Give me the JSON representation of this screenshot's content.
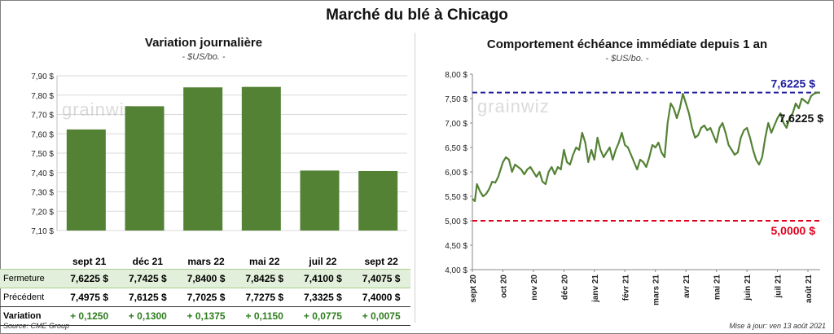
{
  "title": "Marché du blé à Chicago",
  "left_panel": {
    "title": "Variation journalière",
    "subtitle": "- $US/bo. -"
  },
  "right_panel": {
    "title": "Comportement échéance immédiate depuis 1 an",
    "subtitle": "- $US/bo. -"
  },
  "watermark": "grainwiz",
  "table": {
    "row_labels": {
      "close": "Fermeture",
      "prev": "Précédent",
      "var": "Variation"
    },
    "close": [
      "7,6225 $",
      "7,7425 $",
      "7,8400 $",
      "7,8425 $",
      "7,4100 $",
      "7,4075 $"
    ],
    "prev": [
      "7,4975 $",
      "7,6125 $",
      "7,7025 $",
      "7,7275 $",
      "7,3325 $",
      "7,4000 $"
    ],
    "var": [
      "+ 0,1250",
      "+ 0,1300",
      "+ 0,1375",
      "+ 0,1150",
      "+ 0,0775",
      "+ 0,0075"
    ]
  },
  "footer": {
    "source": "Source: CME Group",
    "update": "Mise à jour: ven 13 août 2021"
  },
  "colors": {
    "bar": "#548235",
    "line": "#548235",
    "upper_ref": "#1f1fa0",
    "lower_ref": "#e0001b",
    "table_highlight": "#e2efda"
  },
  "chart_data": [
    {
      "type": "bar",
      "categories": [
        "sept 21",
        "déc 21",
        "mars 22",
        "mai 22",
        "juil 22",
        "sept 22"
      ],
      "values": [
        7.6225,
        7.7425,
        7.84,
        7.8425,
        7.41,
        7.4075
      ],
      "ylim": [
        7.1,
        7.9
      ],
      "yticks": [
        7.1,
        7.2,
        7.3,
        7.4,
        7.5,
        7.6,
        7.7,
        7.8,
        7.9
      ],
      "ytick_labels": [
        "7,10 $",
        "7,20 $",
        "7,30 $",
        "7,40 $",
        "7,50 $",
        "7,60 $",
        "7,70 $",
        "7,80 $",
        "7,90 $"
      ],
      "grid": true
    },
    {
      "type": "line",
      "x_labels": [
        "sept 20",
        "oct 20",
        "nov 20",
        "déc 20",
        "janv 21",
        "févr 21",
        "mars 21",
        "avr 21",
        "mai 21",
        "juin 21",
        "juil 21",
        "août 21"
      ],
      "ylim": [
        4.0,
        8.0
      ],
      "yticks": [
        4.0,
        4.5,
        5.0,
        5.5,
        6.0,
        6.5,
        7.0,
        7.5,
        8.0
      ],
      "ytick_labels": [
        "4,00 $",
        "4,50 $",
        "5,00 $",
        "5,50 $",
        "6,00 $",
        "6,50 $",
        "7,00 $",
        "7,50 $",
        "8,00 $"
      ],
      "series": [
        {
          "x": [
            0,
            0.08,
            0.15,
            0.25,
            0.35,
            0.45,
            0.55,
            0.65,
            0.75,
            0.85,
            1.0,
            1.1,
            1.2,
            1.3,
            1.4,
            1.5,
            1.6,
            1.7,
            1.8,
            1.9,
            2.0,
            2.1,
            2.2,
            2.3,
            2.4,
            2.5,
            2.6,
            2.7,
            2.8,
            2.9,
            3.0,
            3.1,
            3.2,
            3.3,
            3.4,
            3.5,
            3.6,
            3.7,
            3.8,
            3.9,
            4.0,
            4.1,
            4.2,
            4.3,
            4.4,
            4.5,
            4.6,
            4.7,
            4.8,
            4.9,
            5.0,
            5.1,
            5.2,
            5.3,
            5.4,
            5.5,
            5.6,
            5.7,
            5.8,
            5.9,
            6.0,
            6.1,
            6.2,
            6.3,
            6.4,
            6.5,
            6.6,
            6.7,
            6.8,
            6.9,
            7.0,
            7.1,
            7.2,
            7.3,
            7.4,
            7.5,
            7.6,
            7.7,
            7.8,
            7.9,
            8.0,
            8.1,
            8.2,
            8.3,
            8.4,
            8.5,
            8.6,
            8.7,
            8.8,
            8.9,
            9.0,
            9.1,
            9.2,
            9.3,
            9.4,
            9.5,
            9.6,
            9.7,
            9.8,
            9.9,
            10.0,
            10.1,
            10.2,
            10.3,
            10.4,
            10.5,
            10.6,
            10.7,
            10.8,
            10.9,
            11.0,
            11.1,
            11.2,
            11.3,
            11.4
          ],
          "y": [
            5.45,
            5.4,
            5.75,
            5.6,
            5.5,
            5.55,
            5.65,
            5.8,
            5.78,
            5.9,
            6.2,
            6.3,
            6.25,
            6.0,
            6.15,
            6.1,
            6.05,
            5.95,
            6.05,
            6.1,
            6.0,
            5.9,
            6.0,
            5.8,
            5.75,
            6.0,
            6.1,
            5.95,
            6.1,
            6.05,
            6.45,
            6.2,
            6.15,
            6.35,
            6.5,
            6.45,
            6.8,
            6.6,
            6.2,
            6.45,
            6.25,
            6.7,
            6.45,
            6.3,
            6.4,
            6.5,
            6.25,
            6.45,
            6.6,
            6.8,
            6.55,
            6.5,
            6.35,
            6.2,
            6.05,
            6.25,
            6.2,
            6.1,
            6.3,
            6.55,
            6.5,
            6.6,
            6.4,
            6.3,
            7.0,
            7.4,
            7.3,
            7.1,
            7.3,
            7.6,
            7.4,
            7.2,
            6.9,
            6.7,
            6.75,
            6.9,
            6.95,
            6.85,
            6.9,
            6.75,
            6.6,
            6.9,
            7.0,
            6.8,
            6.55,
            6.45,
            6.35,
            6.4,
            6.7,
            6.85,
            6.9,
            6.7,
            6.45,
            6.25,
            6.15,
            6.3,
            6.7,
            7.0,
            6.8,
            6.95,
            7.1,
            7.2,
            7.0,
            6.9,
            7.1,
            7.2,
            7.4,
            7.3,
            7.5,
            7.45,
            7.4,
            7.55,
            7.6,
            7.62,
            7.6225
          ]
        }
      ],
      "reference_lines": [
        {
          "value": 7.6225,
          "label": "7,6225 $",
          "color": "#1f1fa0",
          "style": "dashed"
        },
        {
          "value": 5.0,
          "label": "5,0000 $",
          "color": "#e0001b",
          "style": "dashed"
        }
      ],
      "last_value_label": "7,6225 $",
      "grid": false
    }
  ]
}
